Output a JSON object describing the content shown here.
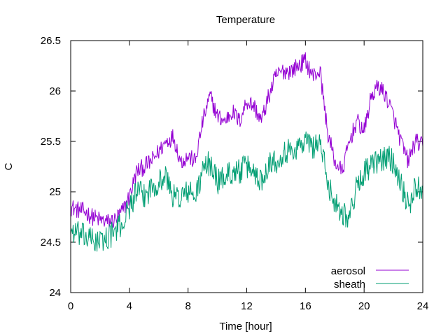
{
  "chart_data": {
    "type": "line",
    "title": "Temperature",
    "xlabel": "Time [hour]",
    "ylabel": "C",
    "xlim": [
      0,
      24
    ],
    "ylim": [
      24,
      26.5
    ],
    "xticks": [
      0,
      4,
      8,
      12,
      16,
      20,
      24
    ],
    "yticks": [
      24,
      24.5,
      25,
      25.5,
      26,
      26.5
    ],
    "xtick_labels": [
      "0",
      "4",
      "8",
      "12",
      "16",
      "20",
      "24"
    ],
    "ytick_labels": [
      "24",
      "24.5",
      "25",
      "25.5",
      "26",
      "26.5"
    ],
    "grid": false,
    "legend_position": "bottom-right",
    "series": [
      {
        "name": "aerosol",
        "color": "#9400d3",
        "x": [
          0,
          0.5,
          1,
          1.5,
          2,
          2.5,
          3,
          3.5,
          4,
          4.5,
          5,
          5.5,
          6,
          6.5,
          7,
          7.5,
          8,
          8.5,
          9,
          9.5,
          10,
          10.5,
          11,
          11.5,
          12,
          12.5,
          13,
          13.5,
          14,
          14.5,
          15,
          15.5,
          16,
          16.5,
          17,
          17.5,
          18,
          18.5,
          19,
          19.5,
          20,
          20.5,
          21,
          21.5,
          22,
          22.5,
          23,
          23.5,
          24
        ],
        "values": [
          24.85,
          24.82,
          24.8,
          24.75,
          24.72,
          24.7,
          24.72,
          24.8,
          24.95,
          25.2,
          25.25,
          25.3,
          25.4,
          25.5,
          25.55,
          25.3,
          25.35,
          25.3,
          25.7,
          25.95,
          25.75,
          25.7,
          25.8,
          25.7,
          25.9,
          25.85,
          25.7,
          25.95,
          26.15,
          26.2,
          26.2,
          26.25,
          26.3,
          26.15,
          26.2,
          25.6,
          25.3,
          25.2,
          25.5,
          25.7,
          25.6,
          25.95,
          26.05,
          25.95,
          25.75,
          25.5,
          25.3,
          25.5,
          25.45
        ]
      },
      {
        "name": "sheath",
        "color": "#009e73",
        "x": [
          0,
          0.5,
          1,
          1.5,
          2,
          2.5,
          3,
          3.5,
          4,
          4.5,
          5,
          5.5,
          6,
          6.5,
          7,
          7.5,
          8,
          8.5,
          9,
          9.5,
          10,
          10.5,
          11,
          11.5,
          12,
          12.5,
          13,
          13.5,
          14,
          14.5,
          15,
          15.5,
          16,
          16.5,
          17,
          17.5,
          18,
          18.5,
          19,
          19.5,
          20,
          20.5,
          21,
          21.5,
          22,
          22.5,
          23,
          23.5,
          24
        ],
        "values": [
          24.62,
          24.58,
          24.55,
          24.52,
          24.5,
          24.55,
          24.6,
          24.68,
          24.85,
          25.0,
          24.95,
          25.05,
          25.1,
          25.15,
          24.95,
          24.95,
          25.0,
          24.95,
          25.2,
          25.3,
          25.1,
          25.15,
          25.2,
          25.2,
          25.25,
          25.2,
          25.1,
          25.3,
          25.3,
          25.4,
          25.4,
          25.45,
          25.5,
          25.45,
          25.5,
          25.1,
          24.9,
          24.8,
          24.75,
          25.05,
          25.2,
          25.25,
          25.3,
          25.35,
          25.3,
          25.1,
          24.85,
          25.05,
          25.05
        ]
      }
    ]
  }
}
